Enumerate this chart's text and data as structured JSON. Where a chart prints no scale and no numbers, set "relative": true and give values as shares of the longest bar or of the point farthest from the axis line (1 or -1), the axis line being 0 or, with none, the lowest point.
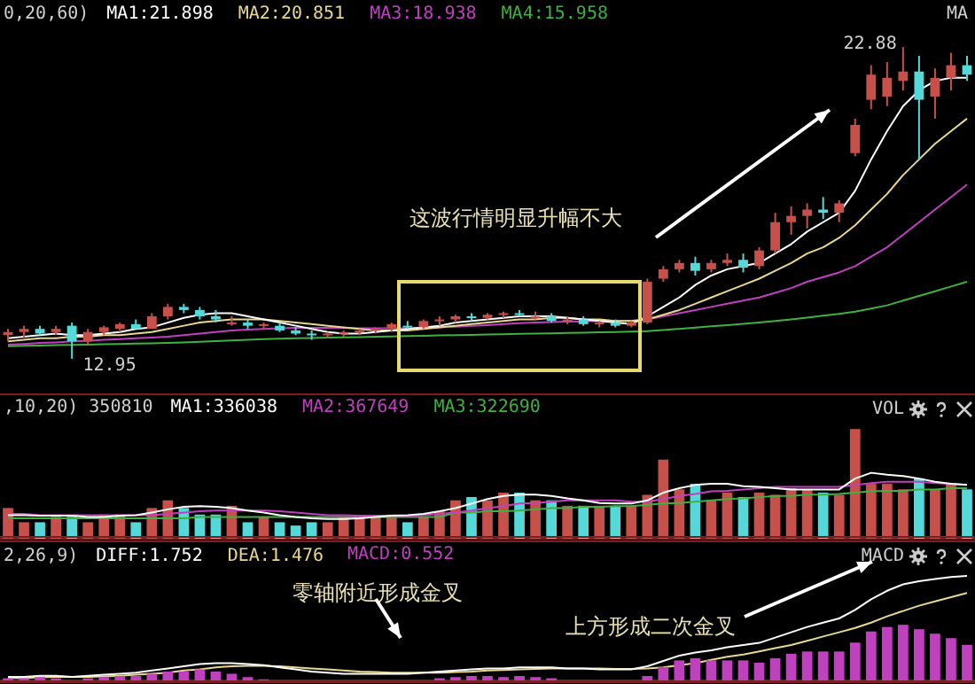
{
  "chart_data": [
    {
      "type": "candlestick",
      "title": "MA",
      "legend_title": "0,20,60)",
      "legend": "top left",
      "tick_labels": false,
      "categories": [
        null,
        null,
        null,
        null,
        null,
        null,
        null,
        null,
        null,
        null,
        null,
        null,
        null,
        null,
        null,
        null,
        null,
        null,
        null,
        null,
        null,
        null,
        null,
        null,
        null,
        null,
        null,
        null,
        null,
        null,
        null,
        null,
        null,
        null,
        null,
        null,
        null,
        null,
        null,
        null,
        null,
        null,
        null,
        null,
        null,
        null,
        null,
        null,
        null,
        null,
        null,
        null,
        null,
        null,
        null,
        null,
        null,
        null,
        null,
        null,
        null
      ],
      "ohlc": [
        [
          13.7,
          13.9,
          13.5,
          13.8
        ],
        [
          13.8,
          14.0,
          13.6,
          13.9
        ],
        [
          13.9,
          14.0,
          13.7,
          13.75
        ],
        [
          13.8,
          14.0,
          13.7,
          13.9
        ],
        [
          14.0,
          14.1,
          12.95,
          13.5
        ],
        [
          13.5,
          13.9,
          13.4,
          13.8
        ],
        [
          13.8,
          14.0,
          13.7,
          13.95
        ],
        [
          13.9,
          14.1,
          13.8,
          14.05
        ],
        [
          14.05,
          14.2,
          13.9,
          13.9
        ],
        [
          13.9,
          14.4,
          13.9,
          14.3
        ],
        [
          14.3,
          14.7,
          14.2,
          14.6
        ],
        [
          14.6,
          14.7,
          14.4,
          14.5
        ],
        [
          14.5,
          14.6,
          14.2,
          14.3
        ],
        [
          14.3,
          14.5,
          14.1,
          14.2
        ],
        [
          14.05,
          14.3,
          14.0,
          14.1
        ],
        [
          14.1,
          14.2,
          13.9,
          14.0
        ],
        [
          14.0,
          14.1,
          13.9,
          14.05
        ],
        [
          14.0,
          14.1,
          13.8,
          13.85
        ],
        [
          13.85,
          13.95,
          13.7,
          13.75
        ],
        [
          13.75,
          13.85,
          13.55,
          13.7
        ],
        [
          13.7,
          13.8,
          13.6,
          13.75
        ],
        [
          13.75,
          13.85,
          13.65,
          13.8
        ],
        [
          13.8,
          13.9,
          13.7,
          13.85
        ],
        [
          13.85,
          13.95,
          13.75,
          13.9
        ],
        [
          13.9,
          14.1,
          13.8,
          14.05
        ],
        [
          14.0,
          14.15,
          13.9,
          13.95
        ],
        [
          13.95,
          14.2,
          13.9,
          14.15
        ],
        [
          14.15,
          14.3,
          14.0,
          14.2
        ],
        [
          14.2,
          14.35,
          14.1,
          14.3
        ],
        [
          14.3,
          14.4,
          14.15,
          14.25
        ],
        [
          14.25,
          14.4,
          14.2,
          14.35
        ],
        [
          14.35,
          14.45,
          14.25,
          14.4
        ],
        [
          14.4,
          14.5,
          14.3,
          14.35
        ],
        [
          14.25,
          14.45,
          14.2,
          14.3
        ],
        [
          14.3,
          14.4,
          14.1,
          14.15
        ],
        [
          14.15,
          14.3,
          14.05,
          14.2
        ],
        [
          14.2,
          14.3,
          14.0,
          14.05
        ],
        [
          14.05,
          14.15,
          13.95,
          14.1
        ],
        [
          14.1,
          14.2,
          13.95,
          14.0
        ],
        [
          14.0,
          14.15,
          13.95,
          14.1
        ],
        [
          14.1,
          15.5,
          14.05,
          15.4
        ],
        [
          15.5,
          15.9,
          15.4,
          15.8
        ],
        [
          15.8,
          16.1,
          15.7,
          16.0
        ],
        [
          16.0,
          16.2,
          15.6,
          15.75
        ],
        [
          15.8,
          16.1,
          15.7,
          16.0
        ],
        [
          16.0,
          16.3,
          15.9,
          16.1
        ],
        [
          16.1,
          16.3,
          15.7,
          15.85
        ],
        [
          15.9,
          16.5,
          15.8,
          16.4
        ],
        [
          16.4,
          17.6,
          16.3,
          17.3
        ],
        [
          17.3,
          17.8,
          16.9,
          17.5
        ],
        [
          17.5,
          17.9,
          17.1,
          17.7
        ],
        [
          17.7,
          18.1,
          17.4,
          17.6
        ],
        [
          17.6,
          18.0,
          17.3,
          17.9
        ],
        [
          19.5,
          20.6,
          19.4,
          20.4
        ],
        [
          21.2,
          22.3,
          20.9,
          22.0
        ],
        [
          21.3,
          22.4,
          21.0,
          21.9
        ],
        [
          21.8,
          22.88,
          21.5,
          22.1
        ],
        [
          22.1,
          22.6,
          19.3,
          21.2
        ],
        [
          21.3,
          22.2,
          20.6,
          21.9
        ],
        [
          21.9,
          22.7,
          21.5,
          22.3
        ],
        [
          22.3,
          22.6,
          21.8,
          22.0
        ]
      ],
      "colors": [
        "#c8504a",
        "#c8504a",
        "#54d8d8",
        "#c8504a",
        "#54d8d8",
        "#c8504a",
        "#c8504a",
        "#c8504a",
        "#54d8d8",
        "#c8504a",
        "#c8504a",
        "#54d8d8",
        "#54d8d8",
        "#54d8d8",
        "#c8504a",
        "#54d8d8",
        "#c8504a",
        "#54d8d8",
        "#54d8d8",
        "#54d8d8",
        "#c8504a",
        "#c8504a",
        "#c8504a",
        "#c8504a",
        "#c8504a",
        "#54d8d8",
        "#c8504a",
        "#c8504a",
        "#c8504a",
        "#54d8d8",
        "#c8504a",
        "#c8504a",
        "#54d8d8",
        "#c8504a",
        "#54d8d8",
        "#c8504a",
        "#54d8d8",
        "#c8504a",
        "#54d8d8",
        "#c8504a",
        "#c8504a",
        "#c8504a",
        "#c8504a",
        "#54d8d8",
        "#c8504a",
        "#c8504a",
        "#54d8d8",
        "#c8504a",
        "#c8504a",
        "#c8504a",
        "#c8504a",
        "#54d8d8",
        "#c8504a",
        "#c8504a",
        "#c8504a",
        "#c8504a",
        "#c8504a",
        "#54d8d8",
        "#c8504a",
        "#c8504a",
        "#54d8d8"
      ],
      "series": [
        {
          "name": "MA1:21.898",
          "type": "line",
          "color": "#ffffff",
          "values": [
            13.6,
            13.65,
            13.7,
            13.75,
            13.7,
            13.7,
            13.75,
            13.8,
            13.9,
            13.95,
            14.1,
            14.25,
            14.35,
            14.4,
            14.4,
            14.3,
            14.2,
            14.1,
            14.0,
            13.9,
            13.8,
            13.75,
            13.75,
            13.8,
            13.85,
            13.9,
            13.95,
            14.0,
            14.1,
            14.15,
            14.2,
            14.25,
            14.3,
            14.3,
            14.3,
            14.25,
            14.2,
            14.15,
            14.1,
            14.05,
            14.3,
            14.6,
            14.9,
            15.3,
            15.6,
            15.8,
            15.9,
            16.0,
            16.3,
            16.6,
            17.0,
            17.3,
            17.6,
            18.3,
            19.3,
            20.2,
            21.0,
            21.5,
            21.8,
            21.9,
            21.9
          ]
        },
        {
          "name": "MA2:20.851",
          "type": "line",
          "color": "#e8d890",
          "values": [
            13.5,
            13.55,
            13.6,
            13.6,
            13.65,
            13.65,
            13.7,
            13.7,
            13.75,
            13.8,
            13.9,
            14.0,
            14.1,
            14.15,
            14.2,
            14.2,
            14.2,
            14.15,
            14.1,
            14.05,
            14.0,
            13.95,
            13.9,
            13.85,
            13.85,
            13.85,
            13.9,
            13.95,
            14.0,
            14.05,
            14.1,
            14.15,
            14.2,
            14.2,
            14.25,
            14.25,
            14.2,
            14.2,
            14.15,
            14.15,
            14.2,
            14.35,
            14.5,
            14.7,
            14.9,
            15.1,
            15.3,
            15.5,
            15.75,
            16.0,
            16.3,
            16.5,
            16.8,
            17.2,
            17.7,
            18.2,
            18.8,
            19.3,
            19.8,
            20.2,
            20.6
          ]
        },
        {
          "name": "MA3:18.938",
          "type": "line",
          "color": "#c040c0",
          "values": [
            13.4,
            13.42,
            13.45,
            13.47,
            13.5,
            13.52,
            13.55,
            13.57,
            13.6,
            13.62,
            13.65,
            13.7,
            13.75,
            13.8,
            13.85,
            13.88,
            13.9,
            13.92,
            13.93,
            13.93,
            13.93,
            13.93,
            13.92,
            13.92,
            13.92,
            13.92,
            13.93,
            13.95,
            13.97,
            14.0,
            14.02,
            14.05,
            14.08,
            14.1,
            14.12,
            14.13,
            14.14,
            14.15,
            14.15,
            14.16,
            14.2,
            14.3,
            14.4,
            14.5,
            14.6,
            14.7,
            14.8,
            14.9,
            15.05,
            15.2,
            15.4,
            15.55,
            15.7,
            15.9,
            16.2,
            16.5,
            16.9,
            17.3,
            17.7,
            18.1,
            18.5
          ]
        },
        {
          "name": "MA4:15.958",
          "type": "line",
          "color": "#40b040",
          "values": [
            13.35,
            13.36,
            13.37,
            13.38,
            13.39,
            13.4,
            13.41,
            13.42,
            13.43,
            13.44,
            13.45,
            13.47,
            13.49,
            13.51,
            13.53,
            13.55,
            13.57,
            13.59,
            13.6,
            13.61,
            13.62,
            13.63,
            13.64,
            13.65,
            13.66,
            13.67,
            13.68,
            13.69,
            13.7,
            13.71,
            13.72,
            13.73,
            13.74,
            13.75,
            13.76,
            13.77,
            13.78,
            13.79,
            13.8,
            13.81,
            13.83,
            13.86,
            13.9,
            13.94,
            13.98,
            14.02,
            14.06,
            14.1,
            14.15,
            14.2,
            14.26,
            14.32,
            14.38,
            14.45,
            14.55,
            14.65,
            14.8,
            14.95,
            15.1,
            15.25,
            15.4
          ]
        }
      ],
      "annotations": [
        "22.88",
        "12.95",
        "这波行情明显升幅不大"
      ]
    },
    {
      "type": "bar",
      "title": "VOL",
      "tick_labels": false,
      "relative": true,
      "categories": [
        null,
        null,
        null,
        null,
        null,
        null,
        null,
        null,
        null,
        null,
        null,
        null,
        null,
        null,
        null,
        null,
        null,
        null,
        null,
        null,
        null,
        null,
        null,
        null,
        null,
        null,
        null,
        null,
        null,
        null,
        null,
        null,
        null,
        null,
        null,
        null,
        null,
        null,
        null,
        null,
        null,
        null,
        null,
        null,
        null,
        null,
        null,
        null,
        null,
        null,
        null,
        null,
        null,
        null,
        null,
        null,
        null,
        null,
        null,
        null,
        null
      ],
      "series": [
        {
          "type": "bar",
          "values": [
            0.28,
            0.15,
            0.15,
            0.2,
            0.2,
            0.15,
            0.22,
            0.22,
            0.15,
            0.28,
            0.35,
            0.28,
            0.22,
            0.22,
            0.3,
            0.15,
            0.2,
            0.15,
            0.12,
            0.15,
            0.15,
            0.2,
            0.2,
            0.2,
            0.22,
            0.15,
            0.2,
            0.25,
            0.35,
            0.38,
            0.35,
            0.42,
            0.42,
            0.35,
            0.35,
            0.3,
            0.3,
            0.3,
            0.3,
            0.3,
            0.4,
            0.72,
            0.45,
            0.5,
            0.35,
            0.42,
            0.38,
            0.42,
            0.4,
            0.46,
            0.45,
            0.42,
            0.4,
            1.0,
            0.5,
            0.5,
            0.45,
            0.55,
            0.45,
            0.5,
            0.45
          ],
          "colors": [
            "#c8504a",
            "#c8504a",
            "#54d8d8",
            "#c8504a",
            "#54d8d8",
            "#c8504a",
            "#c8504a",
            "#c8504a",
            "#54d8d8",
            "#c8504a",
            "#c8504a",
            "#54d8d8",
            "#54d8d8",
            "#54d8d8",
            "#c8504a",
            "#54d8d8",
            "#c8504a",
            "#54d8d8",
            "#54d8d8",
            "#54d8d8",
            "#c8504a",
            "#c8504a",
            "#c8504a",
            "#c8504a",
            "#c8504a",
            "#54d8d8",
            "#c8504a",
            "#c8504a",
            "#c8504a",
            "#54d8d8",
            "#c8504a",
            "#c8504a",
            "#54d8d8",
            "#c8504a",
            "#54d8d8",
            "#c8504a",
            "#54d8d8",
            "#c8504a",
            "#54d8d8",
            "#c8504a",
            "#c8504a",
            "#c8504a",
            "#c8504a",
            "#54d8d8",
            "#c8504a",
            "#c8504a",
            "#54d8d8",
            "#c8504a",
            "#c8504a",
            "#c8504a",
            "#c8504a",
            "#54d8d8",
            "#c8504a",
            "#c8504a",
            "#c8504a",
            "#c8504a",
            "#c8504a",
            "#54d8d8",
            "#c8504a",
            "#c8504a",
            "#54d8d8"
          ]
        }
      ]
    },
    {
      "type": "line",
      "legend_title": ",10,20) 350810",
      "legend": "top left",
      "tick_labels": false,
      "relative": true,
      "categories": [
        null,
        null,
        null,
        null,
        null,
        null,
        null,
        null,
        null,
        null,
        null,
        null,
        null,
        null,
        null,
        null,
        null,
        null,
        null,
        null,
        null,
        null,
        null,
        null,
        null,
        null,
        null,
        null,
        null,
        null,
        null,
        null,
        null,
        null,
        null,
        null,
        null,
        null,
        null,
        null,
        null,
        null,
        null,
        null,
        null,
        null,
        null,
        null,
        null,
        null,
        null,
        null,
        null,
        null,
        null,
        null,
        null,
        null,
        null,
        null,
        null
      ],
      "series": [
        {
          "name": "MA1:336038",
          "color": "#ffffff",
          "values": [
            0.34,
            0.34,
            0.33,
            0.33,
            0.33,
            0.31,
            0.31,
            0.33,
            0.34,
            0.38,
            0.43,
            0.47,
            0.48,
            0.47,
            0.45,
            0.41,
            0.38,
            0.34,
            0.31,
            0.29,
            0.28,
            0.28,
            0.29,
            0.31,
            0.33,
            0.34,
            0.36,
            0.4,
            0.45,
            0.52,
            0.59,
            0.64,
            0.66,
            0.66,
            0.64,
            0.6,
            0.57,
            0.53,
            0.52,
            0.52,
            0.57,
            0.69,
            0.76,
            0.81,
            0.83,
            0.83,
            0.79,
            0.78,
            0.76,
            0.74,
            0.74,
            0.74,
            0.74,
            0.91,
            1.0,
            0.97,
            0.95,
            0.91,
            0.86,
            0.83,
            0.81
          ]
        },
        {
          "name": "MA2:367649",
          "color": "#c040c0",
          "values": [
            0.36,
            0.36,
            0.34,
            0.34,
            0.34,
            0.34,
            0.34,
            0.34,
            0.34,
            0.34,
            0.36,
            0.38,
            0.4,
            0.41,
            0.41,
            0.41,
            0.41,
            0.4,
            0.38,
            0.36,
            0.34,
            0.34,
            0.33,
            0.33,
            0.33,
            0.33,
            0.34,
            0.36,
            0.38,
            0.41,
            0.45,
            0.48,
            0.52,
            0.53,
            0.55,
            0.57,
            0.57,
            0.57,
            0.57,
            0.55,
            0.55,
            0.59,
            0.64,
            0.67,
            0.71,
            0.72,
            0.74,
            0.76,
            0.78,
            0.78,
            0.78,
            0.78,
            0.78,
            0.81,
            0.84,
            0.86,
            0.86,
            0.86,
            0.84,
            0.83,
            0.81
          ]
        },
        {
          "name": "MA3:322690",
          "color": "#40b040",
          "values": [
            0.29,
            0.29,
            0.29,
            0.29,
            0.29,
            0.29,
            0.29,
            0.29,
            0.29,
            0.29,
            0.29,
            0.29,
            0.31,
            0.31,
            0.31,
            0.31,
            0.31,
            0.31,
            0.31,
            0.31,
            0.31,
            0.31,
            0.31,
            0.31,
            0.31,
            0.31,
            0.31,
            0.31,
            0.38,
            0.38,
            0.4,
            0.4,
            0.41,
            0.43,
            0.45,
            0.45,
            0.47,
            0.47,
            0.48,
            0.48,
            0.5,
            0.52,
            0.53,
            0.55,
            0.57,
            0.59,
            0.6,
            0.62,
            0.64,
            0.64,
            0.66,
            0.66,
            0.67,
            0.69,
            0.71,
            0.72,
            0.72,
            0.74,
            0.74,
            0.76,
            0.76
          ]
        }
      ]
    },
    {
      "type": "line",
      "title": "MACD",
      "legend_title": "2,26,9)",
      "legend": "top left",
      "tick_labels": false,
      "relative": true,
      "categories": [
        null,
        null,
        null,
        null,
        null,
        null,
        null,
        null,
        null,
        null,
        null,
        null,
        null,
        null,
        null,
        null,
        null,
        null,
        null,
        null,
        null,
        null,
        null,
        null,
        null,
        null,
        null,
        null,
        null,
        null,
        null,
        null,
        null,
        null,
        null,
        null,
        null,
        null,
        null,
        null,
        null,
        null,
        null,
        null,
        null,
        null,
        null,
        null,
        null,
        null,
        null,
        null,
        null,
        null,
        null,
        null,
        null,
        null,
        null,
        null,
        null
      ],
      "series": [
        {
          "name": "DIFF:1.752",
          "color": "#ffffff",
          "values": [
            0.05,
            0.05,
            0.06,
            0.06,
            0.05,
            0.06,
            0.07,
            0.08,
            0.09,
            0.11,
            0.13,
            0.15,
            0.17,
            0.18,
            0.18,
            0.17,
            0.16,
            0.14,
            0.12,
            0.1,
            0.09,
            0.08,
            0.08,
            0.08,
            0.08,
            0.08,
            0.09,
            0.1,
            0.11,
            0.12,
            0.13,
            0.13,
            0.14,
            0.14,
            0.14,
            0.13,
            0.13,
            0.12,
            0.12,
            0.12,
            0.15,
            0.2,
            0.25,
            0.28,
            0.3,
            0.33,
            0.35,
            0.37,
            0.42,
            0.47,
            0.52,
            0.56,
            0.6,
            0.68,
            0.78,
            0.86,
            0.92,
            0.95,
            0.97,
            0.99,
            1.0
          ]
        },
        {
          "name": "DEA:1.476",
          "color": "#e8d890",
          "values": [
            0.04,
            0.04,
            0.045,
            0.05,
            0.05,
            0.05,
            0.055,
            0.06,
            0.07,
            0.08,
            0.09,
            0.11,
            0.12,
            0.14,
            0.15,
            0.155,
            0.155,
            0.15,
            0.14,
            0.13,
            0.12,
            0.11,
            0.1,
            0.095,
            0.09,
            0.09,
            0.09,
            0.09,
            0.095,
            0.1,
            0.11,
            0.115,
            0.12,
            0.125,
            0.13,
            0.13,
            0.13,
            0.13,
            0.125,
            0.125,
            0.13,
            0.14,
            0.16,
            0.18,
            0.21,
            0.24,
            0.26,
            0.29,
            0.32,
            0.35,
            0.39,
            0.43,
            0.47,
            0.51,
            0.56,
            0.62,
            0.67,
            0.72,
            0.76,
            0.8,
            0.84
          ]
        }
      ],
      "annotations": [
        "零轴附近形成金叉",
        "上方形成二次金叉"
      ]
    },
    {
      "type": "bar",
      "legend": "top left",
      "tick_labels": false,
      "relative": true,
      "categories": [
        null,
        null,
        null,
        null,
        null,
        null,
        null,
        null,
        null,
        null,
        null,
        null,
        null,
        null,
        null,
        null,
        null,
        null,
        null,
        null,
        null,
        null,
        null,
        null,
        null,
        null,
        null,
        null,
        null,
        null,
        null,
        null,
        null,
        null,
        null,
        null,
        null,
        null,
        null,
        null,
        null,
        null,
        null,
        null,
        null,
        null,
        null,
        null,
        null,
        null,
        null,
        null,
        null,
        null,
        null,
        null,
        null,
        null,
        null,
        null,
        null
      ],
      "series": [
        {
          "name": "MACD:0.552",
          "color": "#c040c0",
          "values": [
            0.04,
            0.04,
            0.06,
            0.04,
            null,
            0.04,
            0.06,
            0.08,
            0.08,
            0.12,
            0.16,
            0.16,
            0.2,
            0.16,
            0.12,
            0.06,
            0.02,
            null,
            null,
            null,
            null,
            null,
            null,
            null,
            null,
            null,
            null,
            0.04,
            0.06,
            0.08,
            0.08,
            0.06,
            0.08,
            0.06,
            0.04,
            null,
            null,
            null,
            null,
            null,
            0.08,
            0.24,
            0.36,
            0.4,
            0.36,
            0.36,
            0.36,
            0.32,
            0.4,
            0.48,
            0.52,
            0.52,
            0.52,
            0.68,
            0.88,
            0.96,
            1.0,
            0.92,
            0.84,
            0.76,
            0.64
          ]
        }
      ]
    }
  ]
}
